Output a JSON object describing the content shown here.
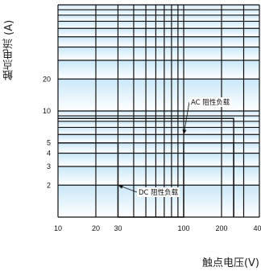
{
  "chart_data": {
    "type": "line",
    "x_scale": "log",
    "y_scale": "log",
    "xlim": [
      10,
      400
    ],
    "ylim": [
      1,
      100
    ],
    "grid": true,
    "xlabel": "触点电压(V)",
    "ylabel": "触点电流 (A)",
    "x_ticks": [
      {
        "value": 10,
        "label": "10"
      },
      {
        "value": 20,
        "label": "20"
      },
      {
        "value": 30,
        "label": "30"
      },
      {
        "value": 100,
        "label": "100"
      },
      {
        "value": 200,
        "label": "200"
      },
      {
        "value": 400,
        "label": "400"
      }
    ],
    "y_ticks": [
      {
        "value": 2,
        "label": "2"
      },
      {
        "value": 3,
        "label": "3"
      },
      {
        "value": 4,
        "label": "4"
      },
      {
        "value": 5,
        "label": "5"
      },
      {
        "value": 10,
        "label": "10"
      },
      {
        "value": 20,
        "label": "20"
      }
    ],
    "series": [
      {
        "name": "AC 阻性负载",
        "x": [
          10,
          250,
          250
        ],
        "y": [
          8.5,
          8.5,
          1
        ]
      },
      {
        "name": "DC 阻性负载",
        "x": [
          10,
          30,
          30,
          100,
          100,
          250,
          250
        ],
        "y": [
          5,
          5,
          1,
          1,
          5,
          5,
          1
        ]
      }
    ],
    "annotations": [
      {
        "text": "AC 阻性负载",
        "point_x": 100,
        "point_y": 6
      },
      {
        "text": "DC 阻性负载",
        "point_x": 30,
        "point_y": 2
      }
    ]
  },
  "colors": {
    "band_blue": "#c9e7f7",
    "band_light": "#ffffff",
    "grid": "#111111",
    "curve": "#111111"
  }
}
